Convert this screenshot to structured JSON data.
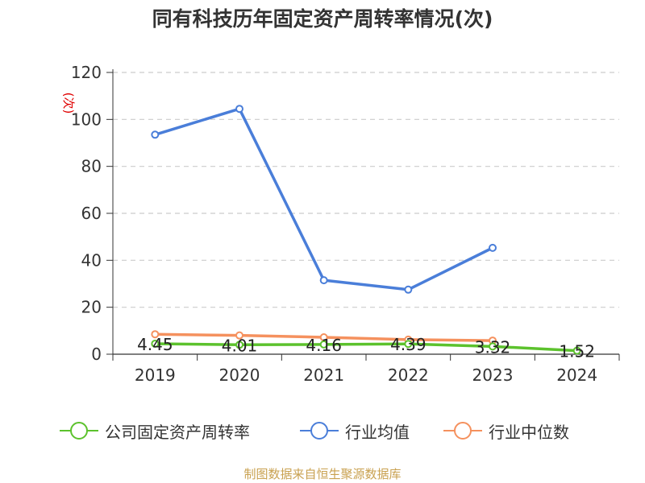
{
  "title": "同有科技历年固定资产周转率情况(次)",
  "source": "制图数据来自恒生聚源数据库",
  "chart_data": {
    "type": "line",
    "title": "同有科技历年固定资产周转率情况(次)",
    "xlabel": "",
    "ylabel": "(次)",
    "categories": [
      "2019",
      "2020",
      "2021",
      "2022",
      "2023",
      "2024"
    ],
    "ylim": [
      0,
      120
    ],
    "yticks": [
      0,
      20,
      40,
      60,
      80,
      100,
      120
    ],
    "grid": true,
    "legend_position": "bottom",
    "series": [
      {
        "name": "公司固定资产周转率",
        "color": "#5cc22d",
        "values": [
          4.45,
          4.01,
          4.16,
          4.39,
          3.32,
          1.52
        ],
        "labels": [
          "4.45",
          "4.01",
          "4.16",
          "4.39",
          "3.32",
          "1.52"
        ]
      },
      {
        "name": "行业均值",
        "color": "#4a7ed9",
        "values": [
          93.5,
          104.5,
          31.5,
          27.5,
          45.3,
          null
        ]
      },
      {
        "name": "行业中位数",
        "color": "#f5915e",
        "values": [
          8.5,
          8.0,
          7.2,
          6.2,
          5.8,
          null
        ]
      }
    ]
  }
}
